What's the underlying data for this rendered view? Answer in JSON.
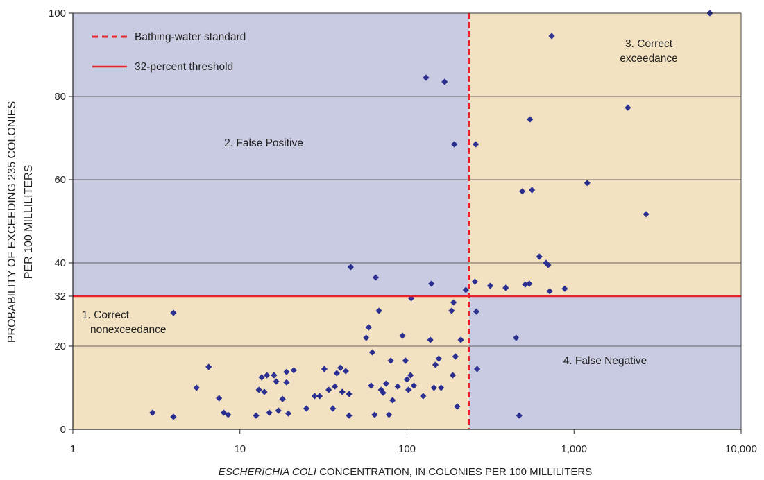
{
  "chart_data": {
    "type": "scatter",
    "x_scale": "log",
    "xlim": [
      1,
      10000
    ],
    "ylim": [
      0,
      100
    ],
    "x_ticks": [
      1,
      10,
      100,
      1000,
      10000
    ],
    "x_tick_labels": [
      "1",
      "10",
      "100",
      "1,000",
      "10,000"
    ],
    "y_ticks": [
      0,
      20,
      32,
      40,
      60,
      80,
      100
    ],
    "y_tick_labels": [
      "0",
      "20",
      "32",
      "40",
      "60",
      "80",
      "100"
    ],
    "xlabel_italic": "ESCHERICHIA COLI",
    "xlabel_rest": " CONCENTRATION, IN COLONIES PER 100 MILLILITERS",
    "ylabel_line1": "PROBABILITY OF EXCEEDING 235 COLONIES",
    "ylabel_line2": "PER 100 MILLILITERS",
    "grid": "horizontal",
    "standard_x": 235,
    "threshold_y": 32,
    "legend_placement": "top-left",
    "legend": [
      {
        "label": "Bathing-water standard",
        "style": "dashed",
        "color": "#e8242b"
      },
      {
        "label": "32-percent threshold",
        "style": "solid",
        "color": "#e8242b"
      }
    ],
    "regions": [
      {
        "lines": [
          "1. Correct",
          "nonexceedance"
        ],
        "color": "#f3e2c2"
      },
      {
        "lines": [
          "2. False Positive"
        ],
        "color": "#c8cbe1"
      },
      {
        "lines": [
          "3. Correct",
          "exceedance"
        ],
        "color": "#f3e2c2"
      },
      {
        "lines": [
          "4. False Negative"
        ],
        "color": "#c8cbe1"
      }
    ],
    "marker_color": "#2b2f8f",
    "points": [
      [
        3,
        4
      ],
      [
        4,
        3
      ],
      [
        4,
        28
      ],
      [
        5.5,
        10
      ],
      [
        6.5,
        15
      ],
      [
        7.5,
        7.5
      ],
      [
        8,
        4
      ],
      [
        8.5,
        3.5
      ],
      [
        12.5,
        3.3
      ],
      [
        13,
        9.5
      ],
      [
        13.5,
        12.5
      ],
      [
        14,
        9
      ],
      [
        14.5,
        13
      ],
      [
        15,
        4
      ],
      [
        16,
        13
      ],
      [
        16.5,
        11.5
      ],
      [
        17,
        4.5
      ],
      [
        18,
        7.3
      ],
      [
        19,
        13.8
      ],
      [
        19,
        11.3
      ],
      [
        19.5,
        3.8
      ],
      [
        21,
        14.2
      ],
      [
        25,
        5
      ],
      [
        28,
        8
      ],
      [
        30,
        8
      ],
      [
        32,
        14.5
      ],
      [
        34,
        9.5
      ],
      [
        36,
        5
      ],
      [
        37,
        10.3
      ],
      [
        38,
        13.5
      ],
      [
        40,
        14.8
      ],
      [
        41,
        9
      ],
      [
        43,
        14
      ],
      [
        45,
        8.5
      ],
      [
        45,
        3.3
      ],
      [
        46,
        39
      ],
      [
        57,
        22
      ],
      [
        59,
        24.5
      ],
      [
        61,
        10.5
      ],
      [
        62,
        18.5
      ],
      [
        64,
        3.5
      ],
      [
        65,
        36.5
      ],
      [
        68,
        28.5
      ],
      [
        70,
        9.5
      ],
      [
        72,
        8.8
      ],
      [
        75,
        11
      ],
      [
        78,
        3.5
      ],
      [
        80,
        16.5
      ],
      [
        82,
        7
      ],
      [
        88,
        10.3
      ],
      [
        94,
        22.5
      ],
      [
        98,
        16.5
      ],
      [
        100,
        12
      ],
      [
        102,
        9.5
      ],
      [
        105,
        13
      ],
      [
        106,
        31.5
      ],
      [
        110,
        10.5
      ],
      [
        125,
        8
      ],
      [
        130,
        84.5
      ],
      [
        138,
        21.5
      ],
      [
        140,
        35
      ],
      [
        145,
        10
      ],
      [
        148,
        15.5
      ],
      [
        155,
        17
      ],
      [
        160,
        10
      ],
      [
        168,
        83.5
      ],
      [
        185,
        28.5
      ],
      [
        188,
        13
      ],
      [
        190,
        30.5
      ],
      [
        192,
        68.5
      ],
      [
        195,
        17.5
      ],
      [
        200,
        5.5
      ],
      [
        210,
        21.5
      ],
      [
        225,
        33.5
      ],
      [
        255,
        35.5
      ],
      [
        258,
        68.5
      ],
      [
        260,
        28.3
      ],
      [
        263,
        14.5
      ],
      [
        315,
        34.5
      ],
      [
        390,
        34
      ],
      [
        450,
        22
      ],
      [
        470,
        3.3
      ],
      [
        490,
        57.2
      ],
      [
        510,
        34.8
      ],
      [
        540,
        35
      ],
      [
        545,
        74.5
      ],
      [
        560,
        57.5
      ],
      [
        620,
        41.5
      ],
      [
        680,
        40
      ],
      [
        700,
        39.5
      ],
      [
        715,
        33.2
      ],
      [
        735,
        94.5
      ],
      [
        880,
        33.8
      ],
      [
        1200,
        59.2
      ],
      [
        2100,
        77.3
      ],
      [
        2700,
        51.7
      ],
      [
        6500,
        100
      ]
    ]
  }
}
